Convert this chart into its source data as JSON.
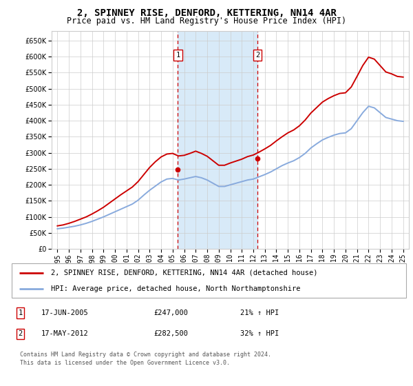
{
  "title": "2, SPINNEY RISE, DENFORD, KETTERING, NN14 4AR",
  "subtitle": "Price paid vs. HM Land Registry's House Price Index (HPI)",
  "years_monthly_count": 31,
  "hpi_x": [
    1995.0,
    1995.5,
    1996.0,
    1996.5,
    1997.0,
    1997.5,
    1998.0,
    1998.5,
    1999.0,
    1999.5,
    2000.0,
    2000.5,
    2001.0,
    2001.5,
    2002.0,
    2002.5,
    2003.0,
    2003.5,
    2004.0,
    2004.5,
    2005.0,
    2005.5,
    2006.0,
    2006.5,
    2007.0,
    2007.5,
    2008.0,
    2008.5,
    2009.0,
    2009.5,
    2010.0,
    2010.5,
    2011.0,
    2011.5,
    2012.0,
    2012.5,
    2013.0,
    2013.5,
    2014.0,
    2014.5,
    2015.0,
    2015.5,
    2016.0,
    2016.5,
    2017.0,
    2017.5,
    2018.0,
    2018.5,
    2019.0,
    2019.5,
    2020.0,
    2020.5,
    2021.0,
    2021.5,
    2022.0,
    2022.5,
    2023.0,
    2023.5,
    2024.0,
    2024.5,
    2025.0
  ],
  "hpi_y": [
    63000,
    65000,
    68000,
    71000,
    75000,
    80000,
    86000,
    93000,
    100000,
    108000,
    116000,
    124000,
    132000,
    140000,
    152000,
    168000,
    183000,
    196000,
    209000,
    218000,
    220000,
    215000,
    218000,
    222000,
    226000,
    222000,
    215000,
    205000,
    195000,
    195000,
    200000,
    205000,
    210000,
    215000,
    218000,
    225000,
    232000,
    240000,
    250000,
    260000,
    268000,
    275000,
    285000,
    298000,
    315000,
    328000,
    340000,
    348000,
    355000,
    360000,
    362000,
    375000,
    400000,
    425000,
    445000,
    440000,
    425000,
    410000,
    405000,
    400000,
    398000
  ],
  "price_x": [
    1995.0,
    1995.5,
    1996.0,
    1996.5,
    1997.0,
    1997.5,
    1998.0,
    1998.5,
    1999.0,
    1999.5,
    2000.0,
    2000.5,
    2001.0,
    2001.5,
    2002.0,
    2002.5,
    2003.0,
    2003.5,
    2004.0,
    2004.5,
    2005.0,
    2005.5,
    2006.0,
    2006.5,
    2007.0,
    2007.5,
    2008.0,
    2008.5,
    2009.0,
    2009.5,
    2010.0,
    2010.5,
    2011.0,
    2011.5,
    2012.0,
    2012.5,
    2013.0,
    2013.5,
    2014.0,
    2014.5,
    2015.0,
    2015.5,
    2016.0,
    2016.5,
    2017.0,
    2017.5,
    2018.0,
    2018.5,
    2019.0,
    2019.5,
    2020.0,
    2020.5,
    2021.0,
    2021.5,
    2022.0,
    2022.5,
    2023.0,
    2023.5,
    2024.0,
    2024.5,
    2025.0
  ],
  "price_y": [
    72000,
    75000,
    80000,
    86000,
    93000,
    100000,
    109000,
    119000,
    130000,
    143000,
    156000,
    169000,
    181000,
    193000,
    210000,
    232000,
    254000,
    272000,
    287000,
    296000,
    298000,
    290000,
    292000,
    298000,
    305000,
    298000,
    289000,
    275000,
    261000,
    261000,
    268000,
    274000,
    280000,
    288000,
    293000,
    302000,
    312000,
    323000,
    337000,
    350000,
    362000,
    371000,
    384000,
    402000,
    424000,
    441000,
    458000,
    469000,
    478000,
    485000,
    487000,
    505000,
    538000,
    572000,
    598000,
    592000,
    572000,
    552000,
    546000,
    538000,
    536000
  ],
  "sale1_x": 2005.46,
  "sale1_y": 247000,
  "sale2_x": 2012.37,
  "sale2_y": 282500,
  "sale1_date": "17-JUN-2005",
  "sale1_price": "£247,000",
  "sale1_hpi": "21% ↑ HPI",
  "sale2_date": "17-MAY-2012",
  "sale2_price": "£282,500",
  "sale2_hpi": "32% ↑ HPI",
  "ylim": [
    0,
    680000
  ],
  "yticks": [
    0,
    50000,
    100000,
    150000,
    200000,
    250000,
    300000,
    350000,
    400000,
    450000,
    500000,
    550000,
    600000,
    650000
  ],
  "xlim_start": 1994.5,
  "xlim_end": 2025.5,
  "xticks": [
    1995,
    1996,
    1997,
    1998,
    1999,
    2000,
    2001,
    2002,
    2003,
    2004,
    2005,
    2006,
    2007,
    2008,
    2009,
    2010,
    2011,
    2012,
    2013,
    2014,
    2015,
    2016,
    2017,
    2018,
    2019,
    2020,
    2021,
    2022,
    2023,
    2024,
    2025
  ],
  "price_color": "#cc0000",
  "hpi_color": "#88aadd",
  "shade_color": "#d8eaf8",
  "vline_color": "#cc0000",
  "grid_color": "#cccccc",
  "bg_color": "#ffffff",
  "legend_line1": "2, SPINNEY RISE, DENFORD, KETTERING, NN14 4AR (detached house)",
  "legend_line2": "HPI: Average price, detached house, North Northamptonshire",
  "footer": "Contains HM Land Registry data © Crown copyright and database right 2024.\nThis data is licensed under the Open Government Licence v3.0.",
  "title_fontsize": 10,
  "subtitle_fontsize": 8.5,
  "tick_fontsize": 7,
  "legend_fontsize": 7.5
}
